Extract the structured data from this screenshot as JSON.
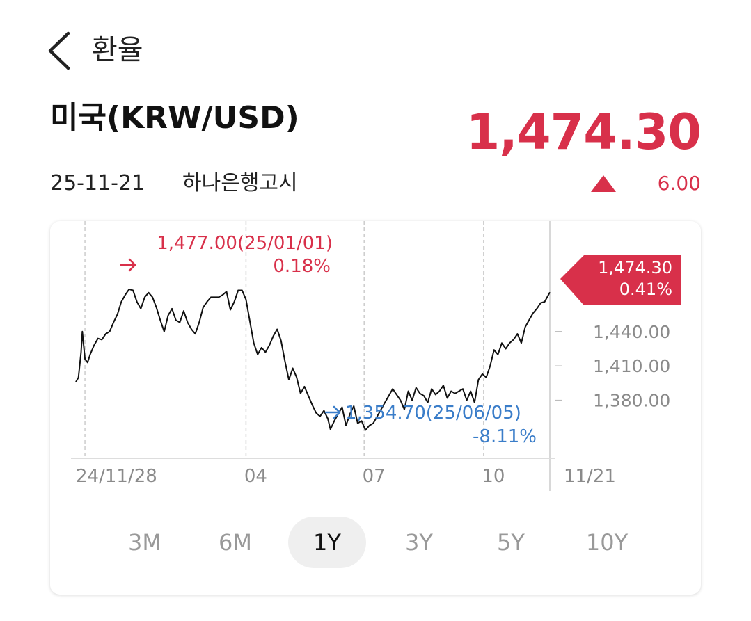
{
  "header": {
    "title": "환율"
  },
  "quote": {
    "currency_name": "미국(KRW/USD)",
    "price": "1,474.30",
    "date": "25-11-21",
    "source": "하나은행고시",
    "change": "6.00",
    "direction_icon": "triangle-up-icon"
  },
  "colors": {
    "up": "#d8304a",
    "down": "#3a7dc9",
    "line": "#111111",
    "grid": "#cccccc"
  },
  "chart_data": {
    "type": "line",
    "x_range": [
      "2024-11-21",
      "2025-11-21"
    ],
    "ylim": [
      1330,
      1500
    ],
    "y_ticks": [
      1440,
      1410,
      1380
    ],
    "y_tick_labels": [
      "1,440.00",
      "1,410.00",
      "1,380.00"
    ],
    "x_ticks": [
      "2024-11-28",
      "2025-04-01",
      "2025-07-01",
      "2025-10-01",
      "2025-11-21"
    ],
    "x_tick_labels": [
      "24/11/28",
      "04",
      "07",
      "10",
      "11/21"
    ],
    "grid": "vertical-dashed",
    "series": [
      {
        "points": [
          [
            "2024-11-21",
            1396
          ],
          [
            "2024-11-23",
            1400
          ],
          [
            "2024-11-25",
            1422
          ],
          [
            "2024-11-26",
            1440
          ],
          [
            "2024-11-28",
            1416
          ],
          [
            "2024-11-30",
            1413
          ],
          [
            "2024-12-02",
            1420
          ],
          [
            "2024-12-05",
            1428
          ],
          [
            "2024-12-08",
            1434
          ],
          [
            "2024-12-11",
            1433
          ],
          [
            "2024-12-14",
            1438
          ],
          [
            "2024-12-17",
            1440
          ],
          [
            "2024-12-20",
            1448
          ],
          [
            "2024-12-23",
            1455
          ],
          [
            "2024-12-26",
            1466
          ],
          [
            "2024-12-29",
            1472
          ],
          [
            "2025-01-01",
            1477
          ],
          [
            "2025-01-04",
            1476
          ],
          [
            "2025-01-07",
            1466
          ],
          [
            "2025-01-10",
            1460
          ],
          [
            "2025-01-13",
            1470
          ],
          [
            "2025-01-16",
            1474
          ],
          [
            "2025-01-19",
            1470
          ],
          [
            "2025-01-22",
            1461
          ],
          [
            "2025-01-25",
            1450
          ],
          [
            "2025-01-28",
            1440
          ],
          [
            "2025-01-31",
            1454
          ],
          [
            "2025-02-03",
            1460
          ],
          [
            "2025-02-06",
            1450
          ],
          [
            "2025-02-09",
            1448
          ],
          [
            "2025-02-12",
            1458
          ],
          [
            "2025-02-15",
            1448
          ],
          [
            "2025-02-18",
            1442
          ],
          [
            "2025-02-21",
            1438
          ],
          [
            "2025-02-24",
            1448
          ],
          [
            "2025-02-27",
            1461
          ],
          [
            "2025-03-02",
            1466
          ],
          [
            "2025-03-05",
            1470
          ],
          [
            "2025-03-08",
            1470
          ],
          [
            "2025-03-11",
            1470
          ],
          [
            "2025-03-14",
            1472
          ],
          [
            "2025-03-17",
            1475
          ],
          [
            "2025-03-20",
            1459
          ],
          [
            "2025-03-23",
            1466
          ],
          [
            "2025-03-26",
            1476
          ],
          [
            "2025-03-29",
            1476
          ],
          [
            "2025-04-01",
            1468
          ],
          [
            "2025-04-04",
            1449
          ],
          [
            "2025-04-07",
            1430
          ],
          [
            "2025-04-10",
            1420
          ],
          [
            "2025-04-13",
            1426
          ],
          [
            "2025-04-16",
            1422
          ],
          [
            "2025-04-19",
            1428
          ],
          [
            "2025-04-22",
            1436
          ],
          [
            "2025-04-25",
            1442
          ],
          [
            "2025-04-28",
            1432
          ],
          [
            "2025-05-01",
            1414
          ],
          [
            "2025-05-04",
            1398
          ],
          [
            "2025-05-07",
            1408
          ],
          [
            "2025-05-10",
            1400
          ],
          [
            "2025-05-13",
            1386
          ],
          [
            "2025-05-16",
            1392
          ],
          [
            "2025-05-19",
            1384
          ],
          [
            "2025-05-22",
            1376
          ],
          [
            "2025-05-25",
            1369
          ],
          [
            "2025-05-28",
            1366
          ],
          [
            "2025-05-31",
            1371
          ],
          [
            "2025-06-03",
            1364
          ],
          [
            "2025-06-05",
            1354.7
          ],
          [
            "2025-06-08",
            1362
          ],
          [
            "2025-06-11",
            1368
          ],
          [
            "2025-06-14",
            1374
          ],
          [
            "2025-06-17",
            1358
          ],
          [
            "2025-06-20",
            1368
          ],
          [
            "2025-06-23",
            1375
          ],
          [
            "2025-06-26",
            1360
          ],
          [
            "2025-06-29",
            1362
          ],
          [
            "2025-07-02",
            1354
          ],
          [
            "2025-07-05",
            1358
          ],
          [
            "2025-07-08",
            1360
          ],
          [
            "2025-07-11",
            1366
          ],
          [
            "2025-07-14",
            1372
          ],
          [
            "2025-07-17",
            1378
          ],
          [
            "2025-07-20",
            1384
          ],
          [
            "2025-07-23",
            1390
          ],
          [
            "2025-07-26",
            1385
          ],
          [
            "2025-07-29",
            1380
          ],
          [
            "2025-08-01",
            1372
          ],
          [
            "2025-08-04",
            1388
          ],
          [
            "2025-08-07",
            1380
          ],
          [
            "2025-08-10",
            1391
          ],
          [
            "2025-08-13",
            1386
          ],
          [
            "2025-08-16",
            1384
          ],
          [
            "2025-08-19",
            1378
          ],
          [
            "2025-08-22",
            1390
          ],
          [
            "2025-08-25",
            1385
          ],
          [
            "2025-08-28",
            1388
          ],
          [
            "2025-08-31",
            1393
          ],
          [
            "2025-09-03",
            1382
          ],
          [
            "2025-09-06",
            1388
          ],
          [
            "2025-09-09",
            1386
          ],
          [
            "2025-09-12",
            1388
          ],
          [
            "2025-09-15",
            1390
          ],
          [
            "2025-09-18",
            1380
          ],
          [
            "2025-09-21",
            1388
          ],
          [
            "2025-09-24",
            1378
          ],
          [
            "2025-09-27",
            1398
          ],
          [
            "2025-09-30",
            1403
          ],
          [
            "2025-10-03",
            1400
          ],
          [
            "2025-10-06",
            1410
          ],
          [
            "2025-10-09",
            1424
          ],
          [
            "2025-10-12",
            1420
          ],
          [
            "2025-10-15",
            1430
          ],
          [
            "2025-10-18",
            1425
          ],
          [
            "2025-10-21",
            1430
          ],
          [
            "2025-10-24",
            1433
          ],
          [
            "2025-10-27",
            1438
          ],
          [
            "2025-10-30",
            1430
          ],
          [
            "2025-11-02",
            1444
          ],
          [
            "2025-11-05",
            1450
          ],
          [
            "2025-11-08",
            1456
          ],
          [
            "2025-11-11",
            1460
          ],
          [
            "2025-11-14",
            1465
          ],
          [
            "2025-11-17",
            1466
          ],
          [
            "2025-11-21",
            1474.3
          ]
        ]
      }
    ],
    "annotations": {
      "high": {
        "date": "2025-01-01",
        "value": 1477.0,
        "label": "1,477.00(25/01/01)",
        "pct": "0.18%"
      },
      "low": {
        "date": "2025-06-05",
        "value": 1354.7,
        "label": "1,354.70(25/06/05)",
        "pct": "-8.11%"
      },
      "current": {
        "value": 1474.3,
        "label": "1,474.30",
        "pct": "0.41%"
      }
    }
  },
  "periods": [
    {
      "label": "3M",
      "active": false
    },
    {
      "label": "6M",
      "active": false
    },
    {
      "label": "1Y",
      "active": true
    },
    {
      "label": "3Y",
      "active": false
    },
    {
      "label": "5Y",
      "active": false
    },
    {
      "label": "10Y",
      "active": false
    }
  ]
}
